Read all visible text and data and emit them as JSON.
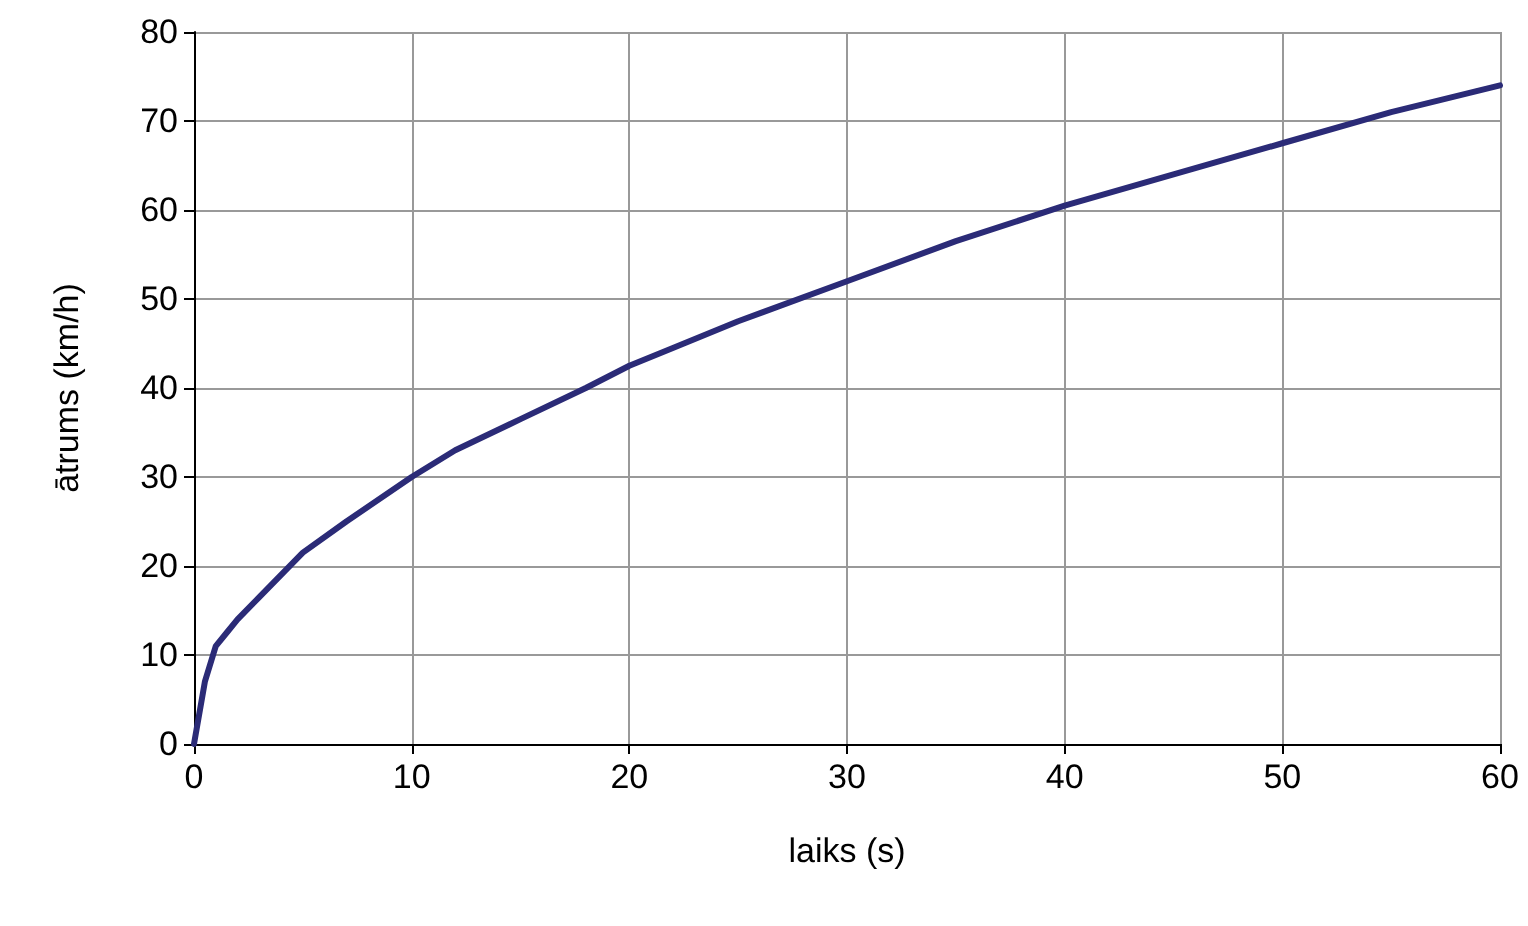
{
  "chart_data": {
    "type": "line",
    "xlabel": "laiks (s)",
    "ylabel": "ātrums (km/h)",
    "x": [
      0,
      0.5,
      1,
      1.5,
      2,
      3,
      4,
      5,
      7,
      10,
      12,
      15,
      18,
      20,
      22,
      25,
      30,
      35,
      40,
      45,
      50,
      55,
      60
    ],
    "series": [
      {
        "color": "#2b2b77",
        "values": [
          0,
          7,
          11,
          12.5,
          14,
          16.5,
          19,
          21.5,
          25,
          30,
          33,
          36.5,
          40,
          42.5,
          44.5,
          47.5,
          52,
          56.5,
          60.5,
          64,
          67.5,
          71,
          74
        ]
      }
    ],
    "xlim": [
      0,
      60
    ],
    "xticks": [
      0,
      10,
      20,
      30,
      40,
      50,
      60
    ],
    "ylim": [
      0,
      80
    ],
    "yticks": [
      0,
      10,
      20,
      30,
      40,
      50,
      60,
      70,
      80
    ],
    "grid": true,
    "marker": "none",
    "line_style": "solid"
  }
}
